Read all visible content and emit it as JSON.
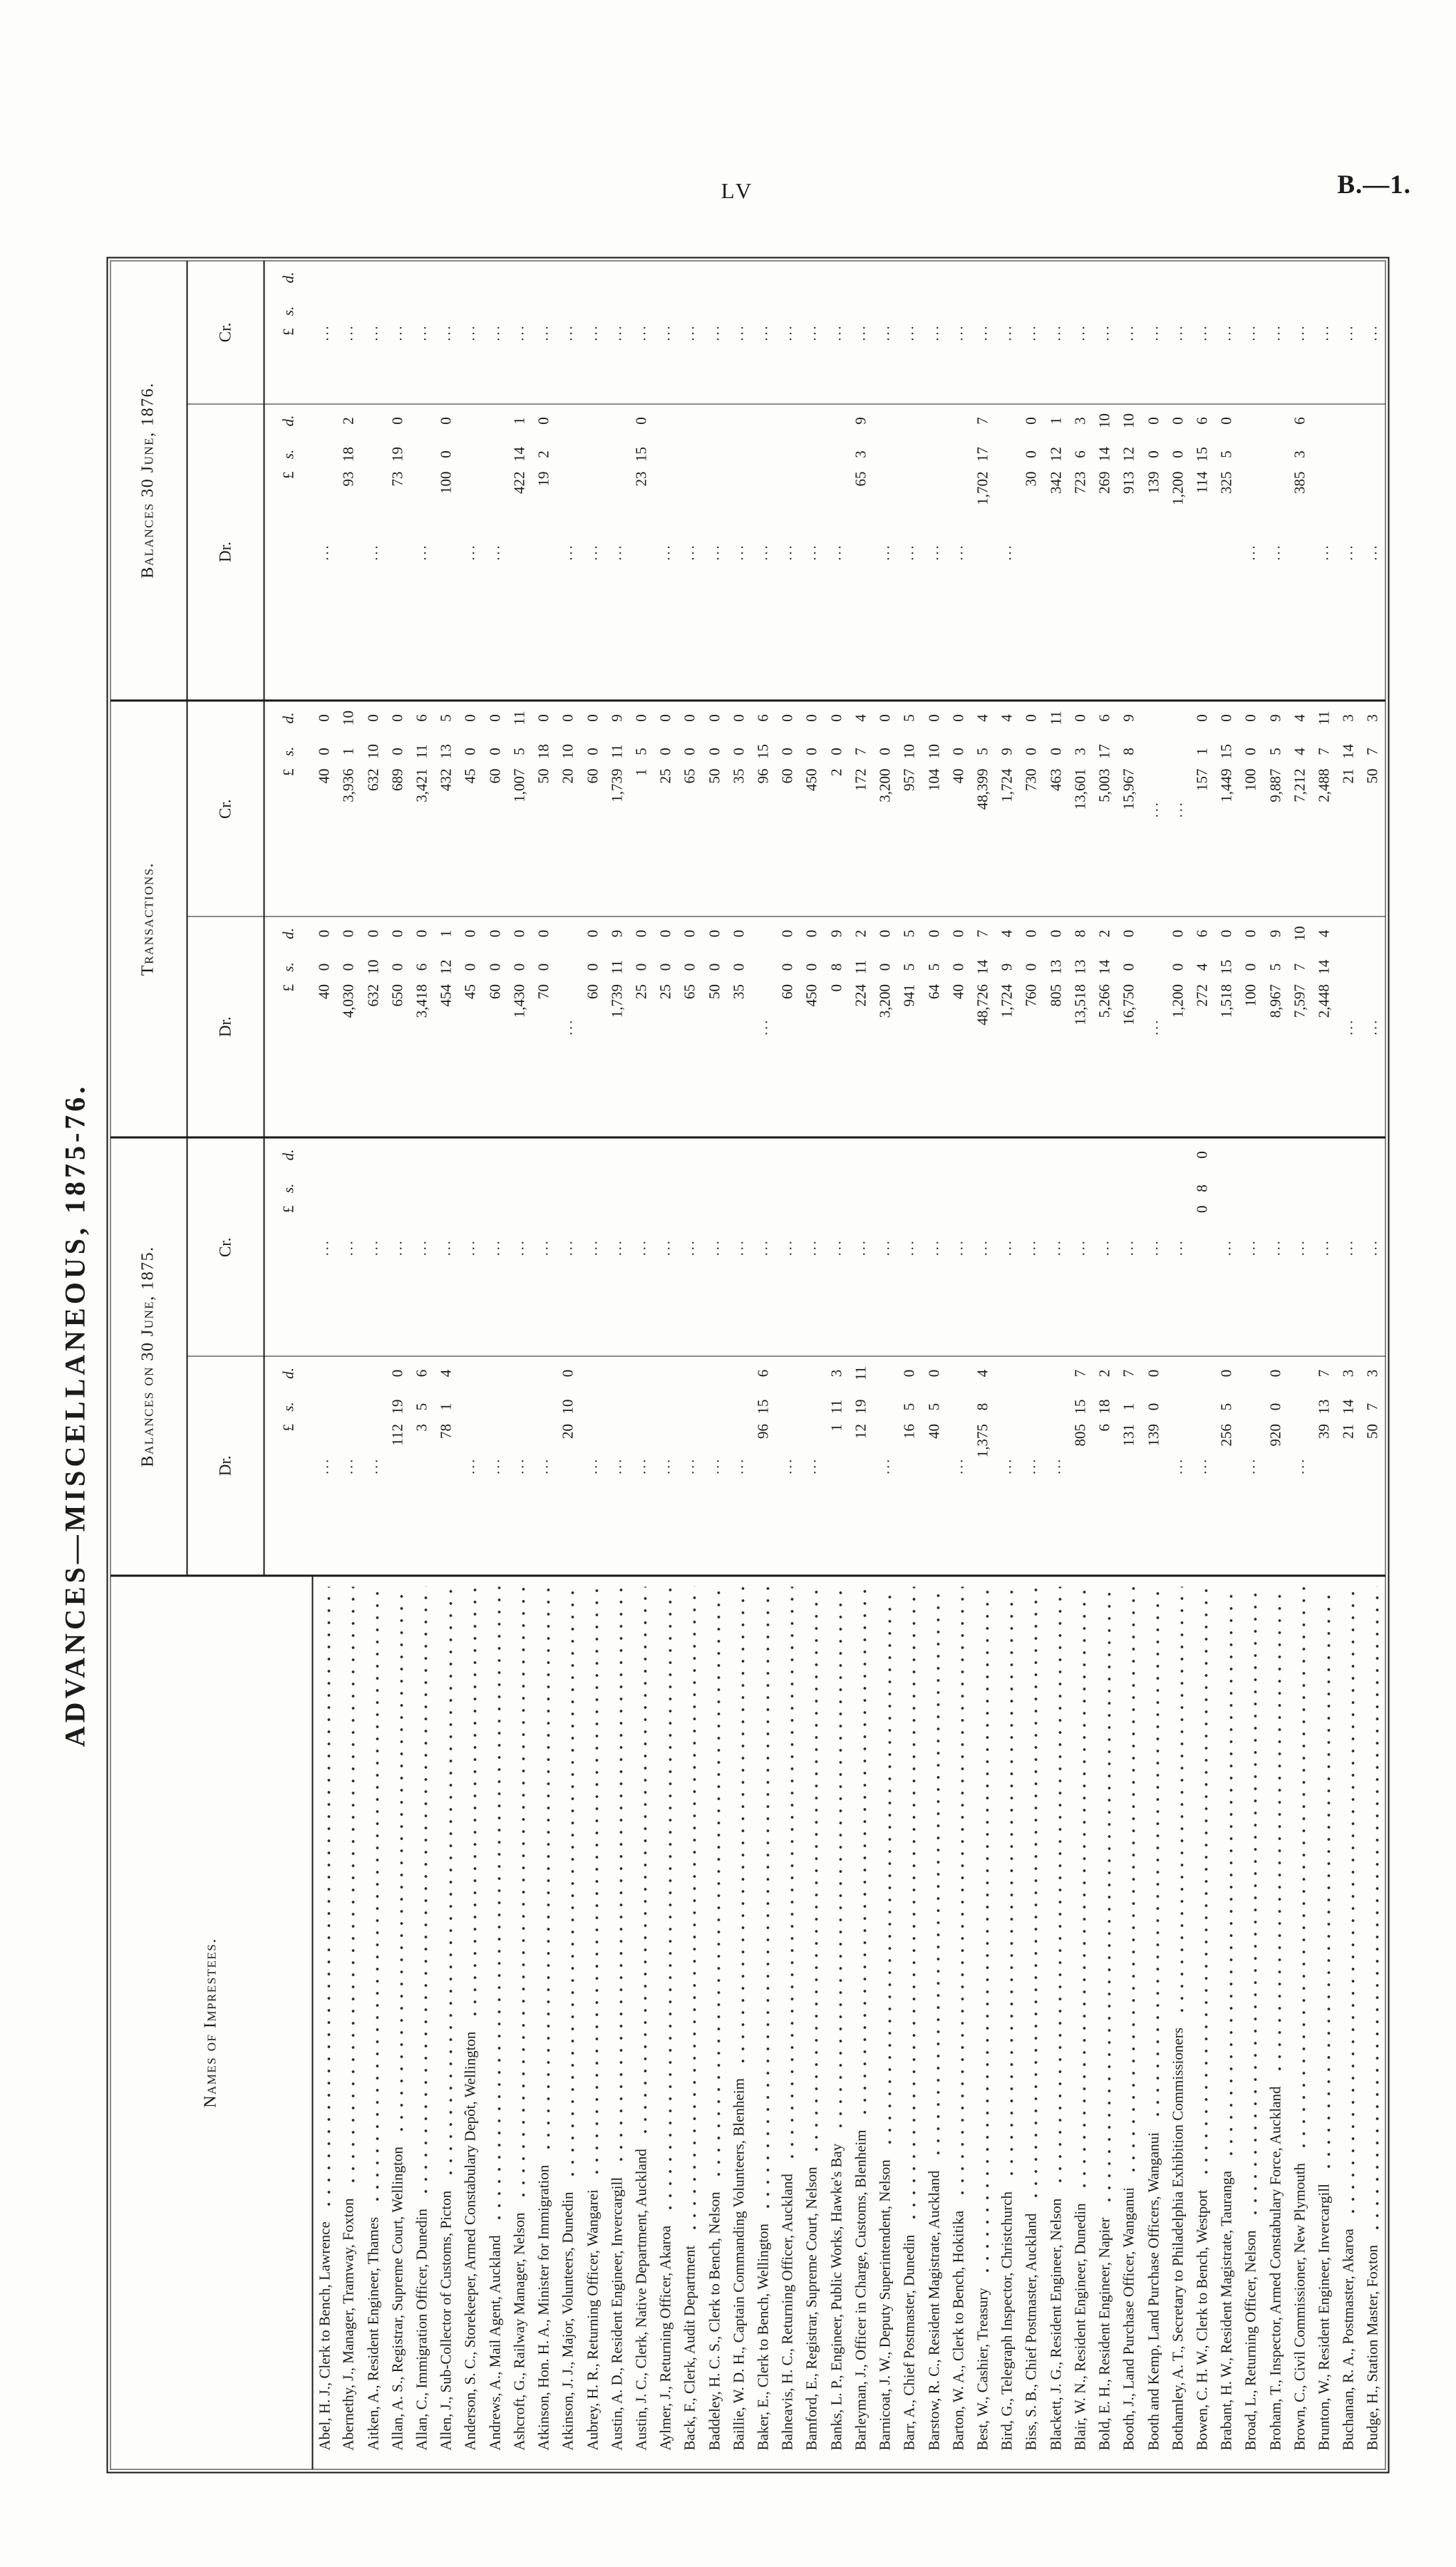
{
  "page": {
    "page_number": "LV",
    "paper_reference": "B.—1.",
    "rotated_title": "ADVANCES—MISCELLANEOUS, 1875-76."
  },
  "table": {
    "names_header": "Names of Imprestees.",
    "empty_marker": "...",
    "currency_symbols": {
      "pounds": "£",
      "shillings": "s.",
      "pence": "d."
    },
    "groups": [
      {
        "label": "Balances on 30 June, 1875.",
        "columns": [
          "Dr.",
          "Cr."
        ]
      },
      {
        "label": "Transactions.",
        "columns": [
          "Dr.",
          "Cr."
        ]
      },
      {
        "label": "Balances 30 June, 1876.",
        "columns": [
          "Dr.",
          "Cr."
        ]
      }
    ],
    "rows": [
      {
        "name": "Abel, H. J., Clerk to Bench, Lawrence",
        "b1875_dr": null,
        "b1875_cr": null,
        "trans_dr": "40 0 0",
        "trans_cr": "40 0 0",
        "b1876_dr": null,
        "b1876_cr": null
      },
      {
        "name": "Abernethy, J., Manager, Tramway, Foxton",
        "b1875_dr": null,
        "b1875_cr": null,
        "trans_dr": "4,030 0 0",
        "trans_cr": "3,936 1 10",
        "b1876_dr": "93 18 2",
        "b1876_cr": null
      },
      {
        "name": "Aitken, A., Resident Engineer, Thames",
        "b1875_dr": null,
        "b1875_cr": null,
        "trans_dr": "632 10 0",
        "trans_cr": "632 10 0",
        "b1876_dr": null,
        "b1876_cr": null
      },
      {
        "name": "Allan, A. S., Registrar, Supreme Court, Wellington",
        "b1875_dr": "112 19 0",
        "b1875_cr": null,
        "trans_dr": "650 0 0",
        "trans_cr": "689 0 0",
        "b1876_dr": "73 19 0",
        "b1876_cr": null
      },
      {
        "name": "Allan, C., Immigration Officer, Dunedin",
        "b1875_dr": "3 5 6",
        "b1875_cr": null,
        "trans_dr": "3,418 6 0",
        "trans_cr": "3,421 11 6",
        "b1876_dr": null,
        "b1876_cr": null
      },
      {
        "name": "Allen, J., Sub-Collector of Customs, Picton",
        "b1875_dr": "78 1 4",
        "b1875_cr": null,
        "trans_dr": "454 12 1",
        "trans_cr": "432 13 5",
        "b1876_dr": "100 0 0",
        "b1876_cr": null
      },
      {
        "name": "Anderson, S. C., Storekeeper, Armed Constabulary Depôt, Wellington",
        "b1875_dr": null,
        "b1875_cr": null,
        "trans_dr": "45 0 0",
        "trans_cr": "45 0 0",
        "b1876_dr": null,
        "b1876_cr": null
      },
      {
        "name": "Andrews, A., Mail Agent, Auckland",
        "b1875_dr": null,
        "b1875_cr": null,
        "trans_dr": "60 0 0",
        "trans_cr": "60 0 0",
        "b1876_dr": null,
        "b1876_cr": null
      },
      {
        "name": "Ashcroft, G., Railway Manager, Nelson",
        "b1875_dr": null,
        "b1875_cr": null,
        "trans_dr": "1,430 0 0",
        "trans_cr": "1,007 5 11",
        "b1876_dr": "422 14 1",
        "b1876_cr": null
      },
      {
        "name": "Atkinson, Hon. H. A., Minister for Immigration",
        "b1875_dr": null,
        "b1875_cr": null,
        "trans_dr": "70 0 0",
        "trans_cr": "50 18 0",
        "b1876_dr": "19 2 0",
        "b1876_cr": null
      },
      {
        "name": "Atkinson, J. J., Major, Volunteers, Dunedin",
        "b1875_dr": "20 10 0",
        "b1875_cr": null,
        "trans_dr": null,
        "trans_cr": "20 10 0",
        "b1876_dr": null,
        "b1876_cr": null
      },
      {
        "name": "Aubrey, H. R., Returning Officer, Wangarei",
        "b1875_dr": null,
        "b1875_cr": null,
        "trans_dr": "60 0 0",
        "trans_cr": "60 0 0",
        "b1876_dr": null,
        "b1876_cr": null
      },
      {
        "name": "Austin, A. D., Resident Engineer, Invercargill",
        "b1875_dr": null,
        "b1875_cr": null,
        "trans_dr": "1,739 11 9",
        "trans_cr": "1,739 11 9",
        "b1876_dr": null,
        "b1876_cr": null
      },
      {
        "name": "Austin, J. C., Clerk, Native Department, Auckland",
        "b1875_dr": null,
        "b1875_cr": null,
        "trans_dr": "25 0 0",
        "trans_cr": "1 5 0",
        "b1876_dr": "23 15 0",
        "b1876_cr": null
      },
      {
        "name": "Aylmer, J., Returning Officer, Akaroa",
        "b1875_dr": null,
        "b1875_cr": null,
        "trans_dr": "25 0 0",
        "trans_cr": "25 0 0",
        "b1876_dr": null,
        "b1876_cr": null
      },
      {
        "name": "Back, F., Clerk, Audit Department",
        "b1875_dr": null,
        "b1875_cr": null,
        "trans_dr": "65 0 0",
        "trans_cr": "65 0 0",
        "b1876_dr": null,
        "b1876_cr": null
      },
      {
        "name": "Baddeley, H. C. S., Clerk to Bench, Nelson",
        "b1875_dr": null,
        "b1875_cr": null,
        "trans_dr": "50 0 0",
        "trans_cr": "50 0 0",
        "b1876_dr": null,
        "b1876_cr": null
      },
      {
        "name": "Baillie, W. D. H., Captain Commanding Volunteers, Blenheim",
        "b1875_dr": null,
        "b1875_cr": null,
        "trans_dr": "35 0 0",
        "trans_cr": "35 0 0",
        "b1876_dr": null,
        "b1876_cr": null
      },
      {
        "name": "Baker, E., Clerk to Bench, Wellington",
        "b1875_dr": "96 15 6",
        "b1875_cr": null,
        "trans_dr": null,
        "trans_cr": "96 15 6",
        "b1876_dr": null,
        "b1876_cr": null
      },
      {
        "name": "Balneavis, H. C., Returning Officer, Auckland",
        "b1875_dr": null,
        "b1875_cr": null,
        "trans_dr": "60 0 0",
        "trans_cr": "60 0 0",
        "b1876_dr": null,
        "b1876_cr": null
      },
      {
        "name": "Bamford, E., Registrar, Supreme Court, Nelson",
        "b1875_dr": null,
        "b1875_cr": null,
        "trans_dr": "450 0 0",
        "trans_cr": "450 0 0",
        "b1876_dr": null,
        "b1876_cr": null
      },
      {
        "name": "Banks, L. P., Engineer, Public Works, Hawke's Bay",
        "b1875_dr": "1 11 3",
        "b1875_cr": null,
        "trans_dr": "0 8 9",
        "trans_cr": "2 0 0",
        "b1876_dr": null,
        "b1876_cr": null
      },
      {
        "name": "Barleyman, J., Officer in Charge, Customs, Blenheim",
        "b1875_dr": "12 19 11",
        "b1875_cr": null,
        "trans_dr": "224 11 2",
        "trans_cr": "172 7 4",
        "b1876_dr": "65 3 9",
        "b1876_cr": null
      },
      {
        "name": "Barnicoat, J. W., Deputy Superintendent, Nelson",
        "b1875_dr": null,
        "b1875_cr": null,
        "trans_dr": "3,200 0 0",
        "trans_cr": "3,200 0 0",
        "b1876_dr": null,
        "b1876_cr": null
      },
      {
        "name": "Barr, A., Chief Postmaster, Dunedin",
        "b1875_dr": "16 5 0",
        "b1875_cr": null,
        "trans_dr": "941 5 5",
        "trans_cr": "957 10 5",
        "b1876_dr": null,
        "b1876_cr": null
      },
      {
        "name": "Barstow, R. C., Resident Magistrate, Auckland",
        "b1875_dr": "40 5 0",
        "b1875_cr": null,
        "trans_dr": "64 5 0",
        "trans_cr": "104 10 0",
        "b1876_dr": null,
        "b1876_cr": null
      },
      {
        "name": "Barton, W. A., Clerk to Bench, Hokitika",
        "b1875_dr": null,
        "b1875_cr": null,
        "trans_dr": "40 0 0",
        "trans_cr": "40 0 0",
        "b1876_dr": null,
        "b1876_cr": null
      },
      {
        "name": "Best, W., Cashier, Treasury",
        "b1875_dr": "1,375 8 4",
        "b1875_cr": null,
        "trans_dr": "48,726 14 7",
        "trans_cr": "48,399 5 4",
        "b1876_dr": "1,702 17 7",
        "b1876_cr": null
      },
      {
        "name": "Bird, G., Telegraph Inspector, Christchurch",
        "b1875_dr": null,
        "b1875_cr": null,
        "trans_dr": "1,724 9 4",
        "trans_cr": "1,724 9 4",
        "b1876_dr": null,
        "b1876_cr": null
      },
      {
        "name": "Biss, S. B., Chief Postmaster, Auckland",
        "b1875_dr": null,
        "b1875_cr": null,
        "trans_dr": "760 0 0",
        "trans_cr": "730 0 0",
        "b1876_dr": "30 0 0",
        "b1876_cr": null
      },
      {
        "name": "Blackett, J. G., Resident Engineer, Nelson",
        "b1875_dr": null,
        "b1875_cr": null,
        "trans_dr": "805 13 0",
        "trans_cr": "463 0 11",
        "b1876_dr": "342 12 1",
        "b1876_cr": null
      },
      {
        "name": "Blair, W. N., Resident Engineer, Dunedin",
        "b1875_dr": "805 15 7",
        "b1875_cr": null,
        "trans_dr": "13,518 13 8",
        "trans_cr": "13,601 3 0",
        "b1876_dr": "723 6 3",
        "b1876_cr": null
      },
      {
        "name": "Bold, E. H., Resident Engineer, Napier",
        "b1875_dr": "6 18 2",
        "b1875_cr": null,
        "trans_dr": "5,266 14 2",
        "trans_cr": "5,003 17 6",
        "b1876_dr": "269 14 10",
        "b1876_cr": null
      },
      {
        "name": "Booth, J., Land Purchase Officer, Wanganui",
        "b1875_dr": "131 1 7",
        "b1875_cr": null,
        "trans_dr": "16,750 0 0",
        "trans_cr": "15,967 8 9",
        "b1876_dr": "913 12 10",
        "b1876_cr": null
      },
      {
        "name": "Booth and Kemp, Land Purchase Officers, Wanganui",
        "b1875_dr": "139 0 0",
        "b1875_cr": null,
        "trans_dr": null,
        "trans_cr": null,
        "b1876_dr": "139 0 0",
        "b1876_cr": null
      },
      {
        "name": "Bothamley, A. T., Secretary to Philadelphia Exhibition Commissioners",
        "b1875_dr": null,
        "b1875_cr": null,
        "trans_dr": "1,200 0 0",
        "trans_cr": null,
        "b1876_dr": "1,200 0 0",
        "b1876_cr": null
      },
      {
        "name": "Bowen, C. H. W., Clerk to Bench, Westport",
        "b1875_dr": null,
        "b1875_cr": "0 8 0",
        "trans_dr": "272 4 6",
        "trans_cr": "157 1 0",
        "b1876_dr": "114 15 6",
        "b1876_cr": null
      },
      {
        "name": "Brabant, H. W., Resident Magistrate, Tauranga",
        "b1875_dr": "256 5 0",
        "b1875_cr": null,
        "trans_dr": "1,518 15 0",
        "trans_cr": "1,449 15 0",
        "b1876_dr": "325 5 0",
        "b1876_cr": null
      },
      {
        "name": "Broad, L., Returning Officer, Nelson",
        "b1875_dr": null,
        "b1875_cr": null,
        "trans_dr": "100 0 0",
        "trans_cr": "100 0 0",
        "b1876_dr": null,
        "b1876_cr": null
      },
      {
        "name": "Broham, T., Inspector, Armed Constabulary Force, Auckland",
        "b1875_dr": "920 0 0",
        "b1875_cr": null,
        "trans_dr": "8,967 5 9",
        "trans_cr": "9,887 5 9",
        "b1876_dr": null,
        "b1876_cr": null
      },
      {
        "name": "Brown, C., Civil Commissioner, New Plymouth",
        "b1875_dr": null,
        "b1875_cr": null,
        "trans_dr": "7,597 7 10",
        "trans_cr": "7,212 4 4",
        "b1876_dr": "385 3 6",
        "b1876_cr": null
      },
      {
        "name": "Brunton, W., Resident Engineer, Invercargill",
        "b1875_dr": "39 13 7",
        "b1875_cr": null,
        "trans_dr": "2,448 14 4",
        "trans_cr": "2,488 7 11",
        "b1876_dr": null,
        "b1876_cr": null
      },
      {
        "name": "Buchanan, R. A., Postmaster, Akaroa",
        "b1875_dr": "21 14 3",
        "b1875_cr": null,
        "trans_dr": null,
        "trans_cr": "21 14 3",
        "b1876_dr": null,
        "b1876_cr": null
      },
      {
        "name": "Budge, H., Station Master, Foxton",
        "b1875_dr": "50 7 3",
        "b1875_cr": null,
        "trans_dr": null,
        "trans_cr": "50 7 3",
        "b1876_dr": null,
        "b1876_cr": null
      }
    ]
  }
}
